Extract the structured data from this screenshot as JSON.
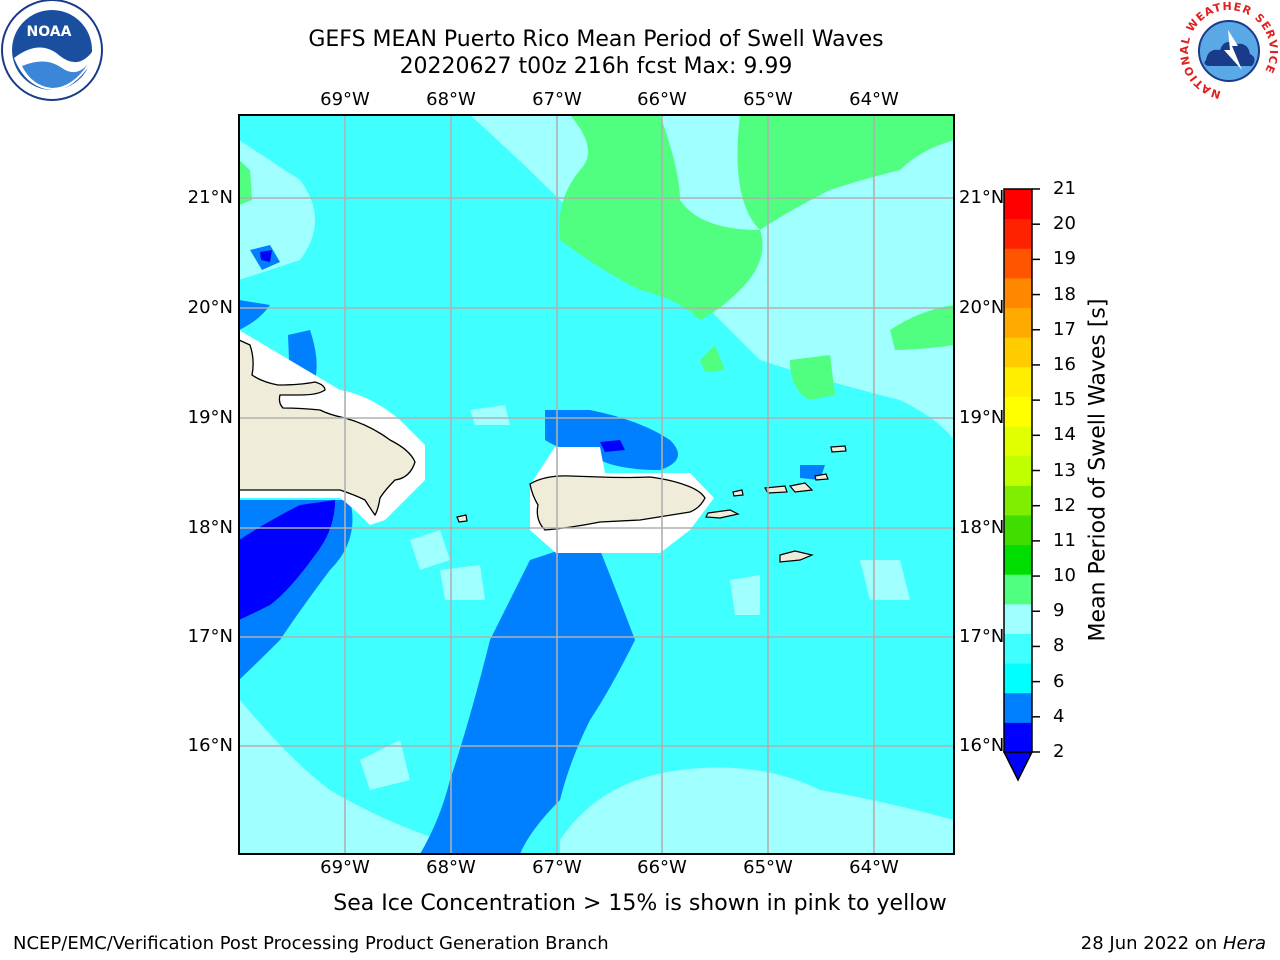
{
  "header": {
    "title_line1": "GEFS MEAN Puerto Rico Mean Period of Swell Waves",
    "title_line2": "20220627 t00z 216h fcst   Max: 9.99"
  },
  "map": {
    "lon_labels": [
      "69°W",
      "68°W",
      "67°W",
      "66°W",
      "65°W",
      "64°W"
    ],
    "lat_labels": [
      "21°N",
      "20°N",
      "19°N",
      "18°N",
      "17°N",
      "16°N"
    ],
    "land_color": "#efedd9",
    "grid_color": "#b0b0b0"
  },
  "colorbar": {
    "label": "Mean Period of Swell Waves [s]",
    "ticks": [
      "21",
      "20",
      "19",
      "18",
      "17",
      "16",
      "15",
      "14",
      "13",
      "12",
      "11",
      "10",
      "9",
      "8",
      "6",
      "4",
      "2"
    ],
    "colors": [
      "#0000ff",
      "#0080ff",
      "#00ffff",
      "#40ffff",
      "#a0ffff",
      "#50ff80",
      "#00dd00",
      "#40dd00",
      "#80ee00",
      "#c0ff00",
      "#e0ff00",
      "#ffff00",
      "#ffee00",
      "#ffcc00",
      "#ffaa00",
      "#ff8800",
      "#ff5500",
      "#ff2200",
      "#ff0000"
    ]
  },
  "caption": "Sea Ice Concentration > 15% is shown in pink to yellow",
  "footer": {
    "left": "NCEP/EMC/Verification Post Processing Product Generation Branch",
    "right_prefix": "28 Jun 2022 on ",
    "right_machine": "Hera"
  },
  "logos": {
    "left": "NOAA",
    "right_ring": "NATIONAL WEATHER SERVICE"
  }
}
